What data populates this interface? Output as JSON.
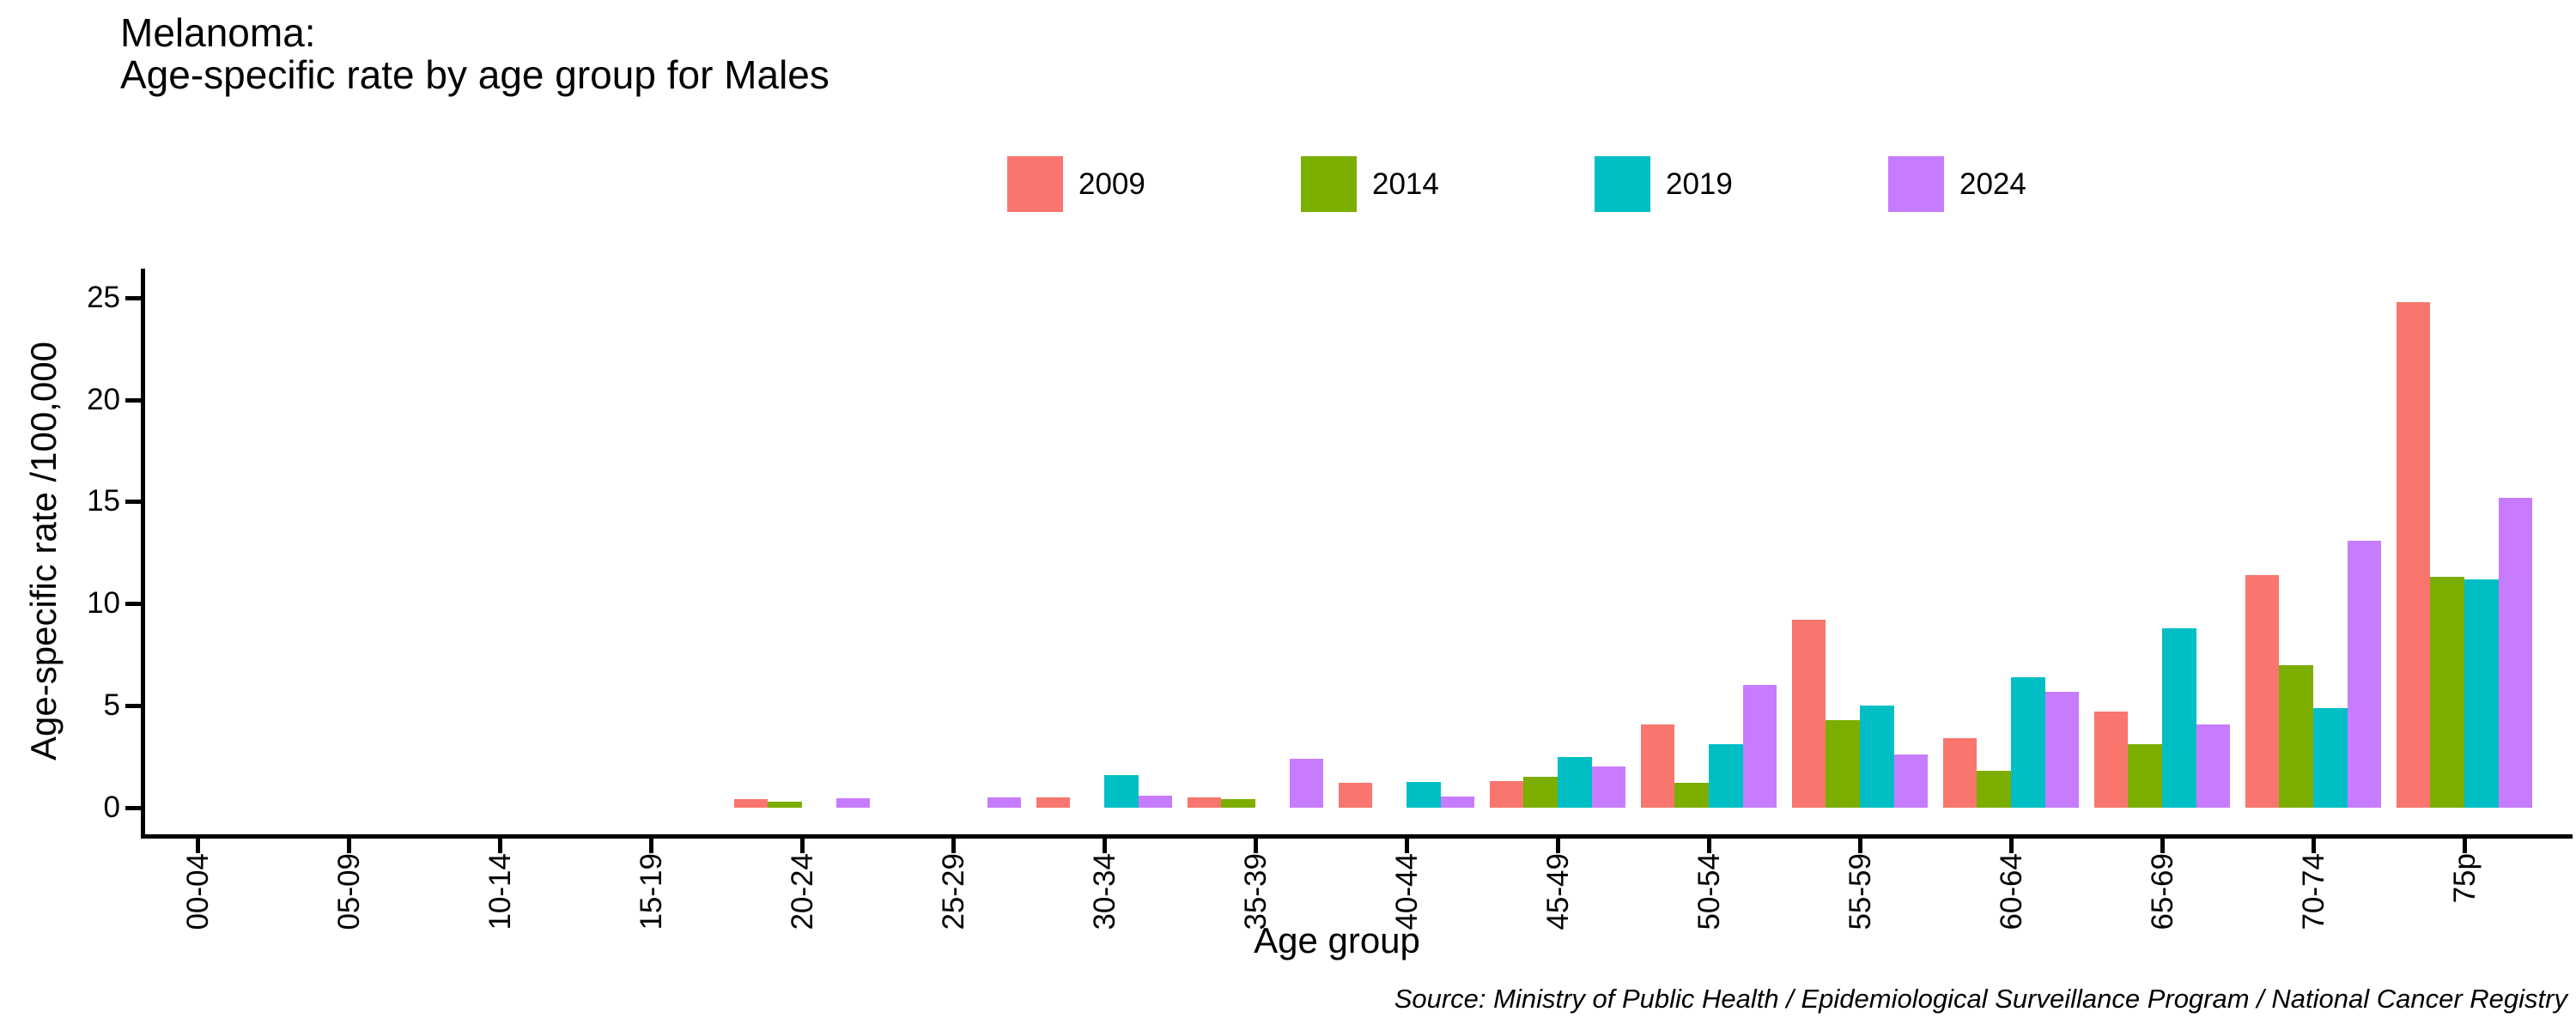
{
  "header": {
    "title_line1": "Melanoma:",
    "title_line2": "Age-specific rate by age group for Males"
  },
  "source_note": "Source: Ministry of Public Health / Epidemiological Surveillance Program / National Cancer Registry",
  "chart_data": {
    "type": "bar",
    "title": "Melanoma:\nAge-specific rate by age group for Males",
    "xlabel": "Age group",
    "ylabel": "Age-specific rate /100,000",
    "ylim": [
      0,
      25
    ],
    "y_ticks": [
      0,
      5,
      10,
      15,
      20,
      25
    ],
    "grid": false,
    "legend_position": "top-center",
    "background_color": "#ffffff",
    "axis_color": "#000000",
    "categories": [
      "00-04",
      "05-09",
      "10-14",
      "15-19",
      "20-24",
      "25-29",
      "30-34",
      "35-39",
      "40-44",
      "45-49",
      "50-54",
      "55-59",
      "60-64",
      "65-69",
      "70-74",
      "75p"
    ],
    "series": [
      {
        "name": "2009",
        "color": "#F8766D",
        "values": [
          0,
          0,
          0,
          0,
          0.4,
          0,
          0.5,
          0.5,
          1.2,
          1.3,
          4.1,
          9.2,
          3.4,
          4.7,
          11.4,
          24.8
        ]
      },
      {
        "name": "2014",
        "color": "#7CAE00",
        "values": [
          0,
          0,
          0,
          0,
          0.3,
          0,
          0,
          0.4,
          0,
          1.5,
          1.2,
          4.3,
          1.8,
          3.1,
          7.0,
          11.3
        ]
      },
      {
        "name": "2019",
        "color": "#00BFC4",
        "values": [
          0,
          0,
          0,
          0,
          0,
          0,
          1.6,
          0,
          1.25,
          2.5,
          3.1,
          5.0,
          6.4,
          8.8,
          4.9,
          11.2
        ]
      },
      {
        "name": "2024",
        "color": "#C77CFF",
        "values": [
          0,
          0,
          0,
          0,
          0.45,
          0.5,
          0.6,
          2.4,
          0.55,
          2.0,
          6.0,
          2.6,
          5.7,
          4.1,
          13.1,
          15.2
        ]
      }
    ]
  }
}
